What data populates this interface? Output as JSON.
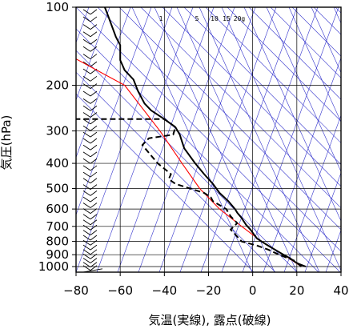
{
  "chart_data": {
    "type": "line",
    "title": "",
    "xlabel": "気温(実線), 露点(破線)",
    "ylabel": "気圧(hPa)",
    "xlim": [
      -80,
      40
    ],
    "ylim": [
      1050,
      100
    ],
    "y_scale": "log",
    "grid": true,
    "xticks": [
      "−80",
      "−60",
      "−40",
      "−20",
      "0",
      "20",
      "40"
    ],
    "yticks": [
      {
        "value": 1000,
        "label": "1000"
      },
      {
        "value": 900,
        "label": "900"
      },
      {
        "value": 800,
        "label": "800"
      },
      {
        "value": 700,
        "label": "700"
      },
      {
        "value": 600,
        "label": "600"
      },
      {
        "value": 500,
        "label": "500"
      },
      {
        "value": 400,
        "label": "400"
      },
      {
        "value": 300,
        "label": "300"
      },
      {
        "value": 200,
        "label": "200"
      },
      {
        "value": 100,
        "label": "100"
      }
    ],
    "mixing_ratio_labels": [
      "1",
      "5",
      "10",
      "15",
      "20g"
    ],
    "colors": {
      "temperature": "#000000",
      "dewpoint": "#000000",
      "parcel": "#ff0000",
      "background_lines": "#3333cc",
      "grid": "#000000"
    },
    "series": [
      {
        "role": "temperature",
        "style": "solid",
        "points": [
          [
            24,
            1000
          ],
          [
            20,
            970
          ],
          [
            17,
            930
          ],
          [
            14,
            900
          ],
          [
            11,
            870
          ],
          [
            8,
            840
          ],
          [
            4,
            800
          ],
          [
            2,
            780
          ],
          [
            1,
            760
          ],
          [
            -1,
            720
          ],
          [
            -3,
            690
          ],
          [
            -4,
            670
          ],
          [
            -5,
            650
          ],
          [
            -7,
            620
          ],
          [
            -8,
            600
          ],
          [
            -11,
            560
          ],
          [
            -15,
            520
          ],
          [
            -18,
            480
          ],
          [
            -22,
            440
          ],
          [
            -26,
            400
          ],
          [
            -31,
            350
          ],
          [
            -32,
            330
          ],
          [
            -33,
            310
          ],
          [
            -35,
            290
          ],
          [
            -40,
            270
          ],
          [
            -46,
            250
          ],
          [
            -49,
            235
          ],
          [
            -52,
            210
          ],
          [
            -54,
            190
          ],
          [
            -58,
            175
          ],
          [
            -60,
            160
          ],
          [
            -60,
            140
          ],
          [
            -61,
            135
          ],
          [
            -62,
            130
          ],
          [
            -66,
            105
          ],
          [
            -67,
            100
          ]
        ]
      },
      {
        "role": "dewpoint",
        "style": "dashed",
        "points": [
          [
            22,
            1000
          ],
          [
            19,
            950
          ],
          [
            12,
            900
          ],
          [
            7,
            860
          ],
          [
            2,
            830
          ],
          [
            -5,
            800
          ],
          [
            -8,
            750
          ],
          [
            -10,
            720
          ],
          [
            -7,
            680
          ],
          [
            -10,
            640
          ],
          [
            -12,
            600
          ],
          [
            -18,
            560
          ],
          [
            -19,
            540
          ],
          [
            -22,
            520
          ],
          [
            -35,
            480
          ],
          [
            -38,
            460
          ],
          [
            -37,
            440
          ],
          [
            -43,
            400
          ],
          [
            -50,
            340
          ],
          [
            -47,
            320
          ],
          [
            -36,
            310
          ],
          [
            -35,
            290
          ],
          [
            -40,
            270
          ],
          [
            -82,
            270
          ]
        ]
      },
      {
        "role": "parcel",
        "style": "solid",
        "points": [
          [
            22,
            1000
          ],
          [
            14,
            900
          ],
          [
            4,
            800
          ],
          [
            -5,
            700
          ],
          [
            -15,
            600
          ],
          [
            -24,
            500
          ],
          [
            -32,
            400
          ],
          [
            -42,
            300
          ],
          [
            -58,
            200
          ],
          [
            -82,
            155
          ]
        ]
      }
    ],
    "wind_barbs": [
      {
        "p": 105
      },
      {
        "p": 112
      },
      {
        "p": 120
      },
      {
        "p": 128
      },
      {
        "p": 137
      },
      {
        "p": 146
      },
      {
        "p": 156
      },
      {
        "p": 167
      },
      {
        "p": 178
      },
      {
        "p": 190
      },
      {
        "p": 203
      },
      {
        "p": 217
      },
      {
        "p": 232
      },
      {
        "p": 247
      },
      {
        "p": 262
      },
      {
        "p": 278
      },
      {
        "p": 295
      },
      {
        "p": 312
      },
      {
        "p": 330
      },
      {
        "p": 350
      },
      {
        "p": 372
      },
      {
        "p": 395
      },
      {
        "p": 420
      },
      {
        "p": 445
      },
      {
        "p": 470
      },
      {
        "p": 497
      },
      {
        "p": 525
      },
      {
        "p": 555
      },
      {
        "p": 585
      },
      {
        "p": 615
      },
      {
        "p": 647
      },
      {
        "p": 680
      },
      {
        "p": 712
      },
      {
        "p": 745
      },
      {
        "p": 780
      },
      {
        "p": 815
      },
      {
        "p": 850
      },
      {
        "p": 885
      },
      {
        "p": 920
      },
      {
        "p": 955
      },
      {
        "p": 990
      },
      {
        "p": 1020
      }
    ]
  }
}
